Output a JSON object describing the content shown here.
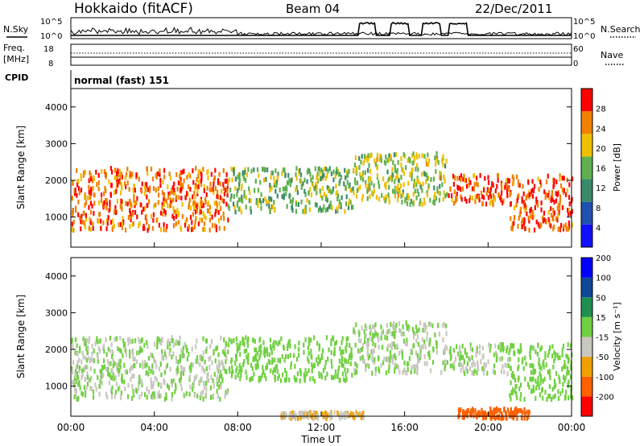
{
  "header": {
    "station": "Hokkaido (fitACF)",
    "beam": "Beam 04",
    "date": "22/Dec/2011"
  },
  "noise_panel": {
    "left_label": "N.Sky",
    "right_label": "N.Search",
    "left_ticks": [
      "10^5",
      "10^0"
    ],
    "right_ticks": [
      "10^5",
      "10^0"
    ]
  },
  "freq_panel": {
    "left_label_1": "Freq.",
    "left_label_2": "[MHz]",
    "right_label": "Nave",
    "left_ticks": [
      "18",
      "8"
    ],
    "right_ticks": [
      "60",
      "0"
    ]
  },
  "cpid_panel": {
    "label": "CPID",
    "text": "normal (fast) 151"
  },
  "power_panel": {
    "ylabel": "Slant Range [km]",
    "yticks": [
      "1000",
      "2000",
      "3000",
      "4000"
    ],
    "colorbar_label": "Power [dB]",
    "colorbar_ticks": [
      "4",
      "8",
      "12",
      "16",
      "20",
      "24",
      "28"
    ],
    "colors": [
      "#1010ff",
      "#2050b0",
      "#3a8a6a",
      "#60b050",
      "#f0c000",
      "#f08000",
      "#ff0000"
    ]
  },
  "velocity_panel": {
    "ylabel": "Slant Range [km]",
    "yticks": [
      "1000",
      "2000",
      "3000",
      "4000"
    ],
    "colorbar_label": "Velocity [m s⁻¹]",
    "colorbar_ticks": [
      "-200",
      "-100",
      "-50",
      "-15",
      "15",
      "50",
      "100",
      "200"
    ],
    "colors": [
      "#ff0000",
      "#ff6000",
      "#f0a000",
      "#c8c8c0",
      "#70d040",
      "#209050",
      "#104898",
      "#0000ff"
    ]
  },
  "xaxis": {
    "label": "Time UT",
    "ticks": [
      "00:00",
      "04:00",
      "08:00",
      "12:00",
      "16:00",
      "20:00",
      "00:00"
    ]
  },
  "chart_data": {
    "type": "heatmap",
    "title": "Hokkaido (fitACF)",
    "subtitle": "Beam 04 22/Dec/2011",
    "xlabel": "Time UT",
    "ylabel": "Slant Range [km]",
    "x_ticks": [
      "00:00",
      "04:00",
      "08:00",
      "12:00",
      "16:00",
      "20:00",
      "00:00"
    ],
    "x_range_hours": [
      0,
      24
    ],
    "y_range_km": [
      180,
      4500
    ],
    "panels": [
      {
        "name": "Power [dB]",
        "colorbar_ticks": [
          4,
          8,
          12,
          16,
          20,
          24,
          28
        ],
        "regions": [
          {
            "t0": 0.0,
            "t1": 7.5,
            "r0": 700,
            "r1": 2400,
            "value": 26
          },
          {
            "t0": 7.5,
            "t1": 13.5,
            "r0": 1200,
            "r1": 2400,
            "value": 16
          },
          {
            "t0": 13.5,
            "t1": 18.0,
            "r0": 1400,
            "r1": 2800,
            "value": 18
          },
          {
            "t0": 18.0,
            "t1": 21.0,
            "r0": 1400,
            "r1": 2200,
            "value": 27
          },
          {
            "t0": 21.0,
            "t1": 24.0,
            "r0": 700,
            "r1": 2200,
            "value": 27
          }
        ]
      },
      {
        "name": "Velocity [m s-1]",
        "colorbar_ticks": [
          -200,
          -100,
          -50,
          -15,
          15,
          50,
          100,
          200
        ],
        "regions": [
          {
            "t0": 0.0,
            "t1": 7.5,
            "r0": 700,
            "r1": 2400,
            "value": 0
          },
          {
            "t0": 7.5,
            "t1": 13.5,
            "r0": 1200,
            "r1": 2400,
            "value": 30
          },
          {
            "t0": 13.5,
            "t1": 18.0,
            "r0": 1400,
            "r1": 2800,
            "value": 0
          },
          {
            "t0": 18.0,
            "t1": 21.0,
            "r0": 1400,
            "r1": 2200,
            "value": 0
          },
          {
            "t0": 21.0,
            "t1": 24.0,
            "r0": 700,
            "r1": 2200,
            "value": 30
          },
          {
            "t0": 10.0,
            "t1": 14.0,
            "r0": 180,
            "r1": 350,
            "value": -60
          },
          {
            "t0": 18.5,
            "t1": 22.0,
            "r0": 180,
            "r1": 450,
            "value": -150
          }
        ]
      }
    ]
  }
}
